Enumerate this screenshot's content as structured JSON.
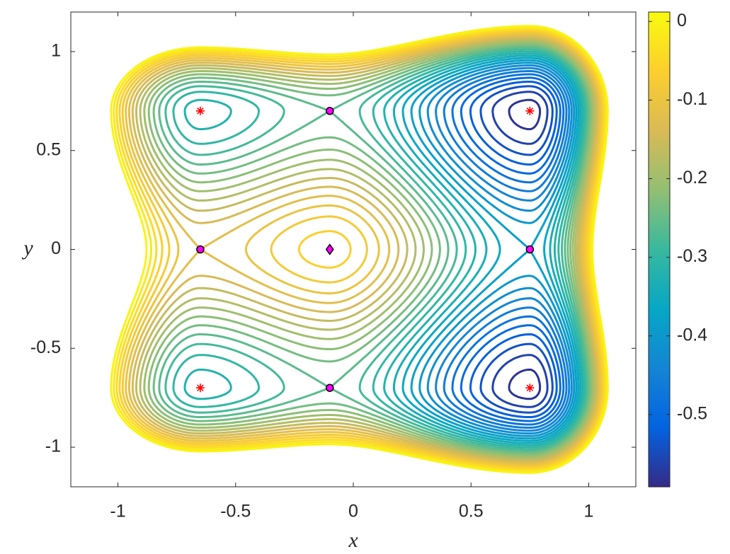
{
  "chart_data": {
    "type": "contour",
    "xlabel": "x",
    "ylabel": "y",
    "xlim": [
      -1.2,
      1.2
    ],
    "ylim": [
      -1.2,
      1.2
    ],
    "xticks": [
      -1,
      -0.5,
      0,
      0.5,
      1
    ],
    "yticks": [
      -1,
      -0.5,
      0,
      0.5,
      1
    ],
    "levels": [
      -0.58,
      -0.56,
      -0.54,
      -0.52,
      -0.5,
      -0.48,
      -0.46,
      -0.44,
      -0.42,
      -0.4,
      -0.38,
      -0.36,
      -0.34,
      -0.32,
      -0.3,
      -0.28,
      -0.26,
      -0.24,
      -0.22,
      -0.2,
      -0.18,
      -0.16,
      -0.14,
      -0.12,
      -0.1,
      -0.08,
      -0.06,
      -0.04,
      -0.02,
      0
    ],
    "clim": [
      -0.592,
      0.012
    ],
    "cticks": [
      0,
      -0.1,
      -0.2,
      -0.3,
      -0.4,
      -0.5
    ],
    "colormap": [
      "#352a87",
      "#0363e1",
      "#1485d4",
      "#06a7c6",
      "#38b99e",
      "#92bf73",
      "#d9ba56",
      "#fcce2e",
      "#f9fb0e"
    ],
    "points": [
      {
        "marker": "star",
        "color": "#ff0000",
        "x": [
          -0.65,
          0.75,
          -0.65,
          0.75
        ],
        "y": [
          0.7,
          0.7,
          -0.7,
          -0.7
        ],
        "z": [
          -0.33,
          -0.59,
          -0.33,
          -0.59
        ]
      },
      {
        "marker": "circle",
        "color": "#ff00ff",
        "x": [
          -0.1,
          -0.1,
          -0.65,
          0.75
        ],
        "y": [
          0.7,
          -0.7,
          0,
          0
        ],
        "z": [
          -0.26,
          -0.26,
          -0.12,
          -0.38
        ]
      },
      {
        "marker": "diamond",
        "color": "#ff00ff",
        "x": [
          -0.1
        ],
        "y": [
          0
        ],
        "z": [
          -0.05
        ]
      }
    ]
  }
}
